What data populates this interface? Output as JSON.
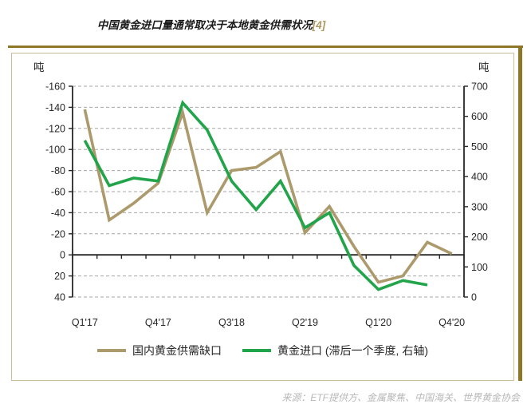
{
  "title": {
    "text": "中国黄金进口量通常取决于本地黄金供需状况",
    "footnote_ref": "[4]"
  },
  "source": {
    "text": "来源：ETF提供方、金属聚焦、中国海关、世界黄金协会"
  },
  "colors": {
    "accent_gold": "#8E7728",
    "frame_border": "#C9BD9C",
    "footnote_gold": "#AF9A62",
    "grid": "#A7A7A7",
    "axis": "#262626",
    "source_text": "#B7B7B7",
    "series_domestic_gap": "#AC9A6D",
    "series_gold_imports": "#22A44A"
  },
  "chart_data": {
    "type": "line",
    "categories": [
      "Q1'17",
      "Q2'17",
      "Q3'17",
      "Q4'17",
      "Q1'18",
      "Q2'18",
      "Q3'18",
      "Q4'18",
      "Q1'19",
      "Q2'19",
      "Q3'19",
      "Q4'19",
      "Q1'20",
      "Q2'20",
      "Q3'20",
      "Q4'20"
    ],
    "x_label_every": 3,
    "x_axis_labels_shown": [
      "Q1'17",
      "Q4'17",
      "Q3'18",
      "Q2'19",
      "Q1'20",
      "Q4'20"
    ],
    "axes": {
      "left": {
        "unit_label": "吨",
        "top_value": -160,
        "bottom_value": 40,
        "tick_step": 20,
        "inverted": true,
        "ticks": [
          -160,
          -140,
          -120,
          -100,
          -80,
          -60,
          -40,
          -20,
          0,
          20,
          40
        ]
      },
      "right": {
        "unit_label": "吨",
        "top_value": 700,
        "bottom_value": 0,
        "tick_step": 100,
        "ticks": [
          700,
          600,
          500,
          400,
          300,
          200,
          100,
          0
        ]
      }
    },
    "grid": "horizontal-dashed",
    "legend_position": "bottom",
    "series": [
      {
        "name": "国内黄金供需缺口",
        "axis": "left",
        "color": "#AC9A6D",
        "values": [
          -138,
          -33,
          -49,
          -68,
          -135,
          -40,
          -80,
          -83,
          -98,
          -21,
          -46,
          -8,
          26,
          20,
          -12,
          -1
        ]
      },
      {
        "name": "黄金进口 (滞后一个季度, 右轴)",
        "axis": "right",
        "color": "#22A44A",
        "values": [
          520,
          370,
          395,
          385,
          645,
          555,
          385,
          290,
          385,
          230,
          280,
          105,
          25,
          55,
          40,
          null
        ]
      }
    ]
  }
}
